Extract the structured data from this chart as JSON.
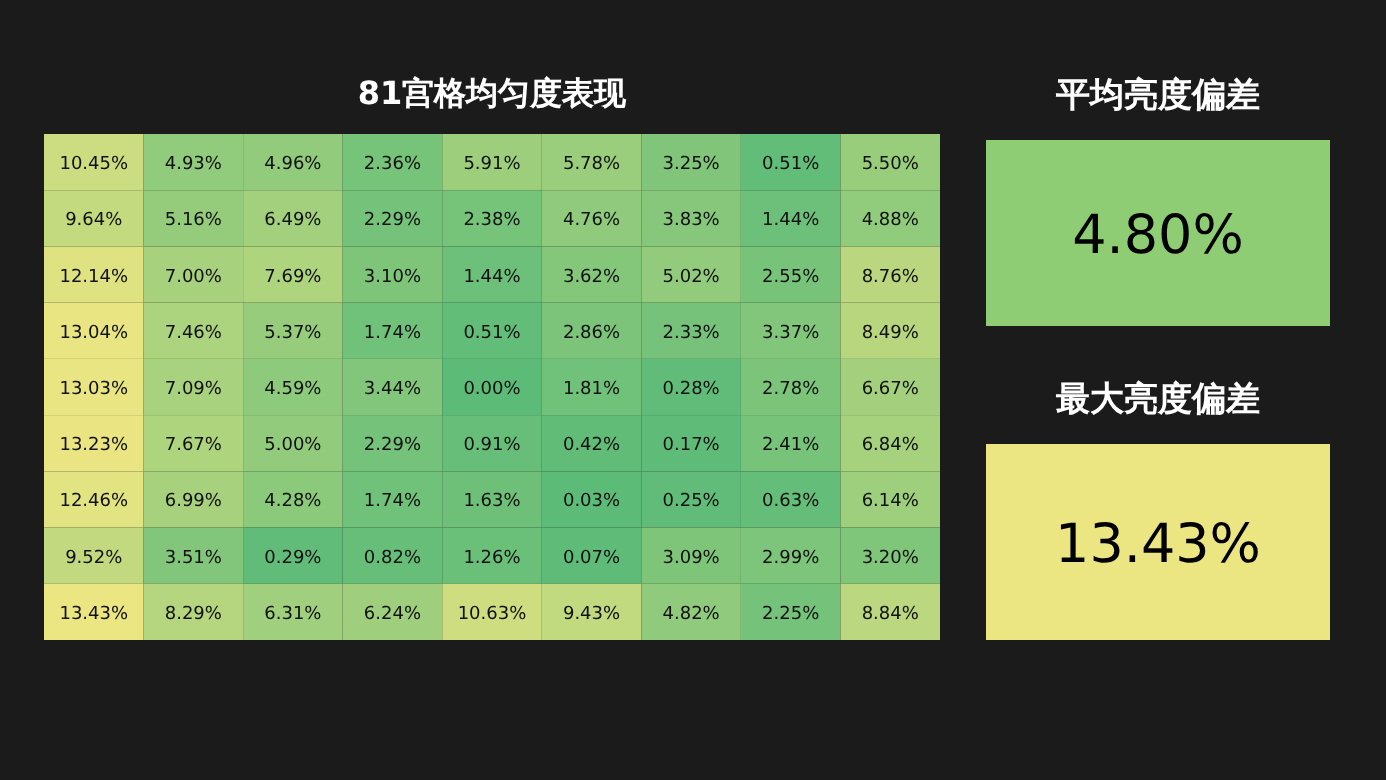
{
  "chart_data": [
    {
      "type": "heatmap",
      "title": "81宫格均匀度表现",
      "categories": [
        null,
        null,
        null,
        null,
        null,
        null,
        null,
        null,
        null
      ],
      "y_categories": [
        null,
        null,
        null,
        null,
        null,
        null,
        null,
        null,
        null
      ],
      "colors": [
        "#5dbb78",
        "#ece682"
      ],
      "cells": [
        [
          10.45,
          4.93,
          4.96,
          2.36,
          5.91,
          5.78,
          3.25,
          0.51,
          5.5
        ],
        [
          9.64,
          5.16,
          6.49,
          2.29,
          2.38,
          4.76,
          3.83,
          1.44,
          4.88
        ],
        [
          12.14,
          7.0,
          7.69,
          3.1,
          1.44,
          3.62,
          5.02,
          2.55,
          8.76
        ],
        [
          13.04,
          7.46,
          5.37,
          1.74,
          0.51,
          2.86,
          2.33,
          3.37,
          8.49
        ],
        [
          13.03,
          7.09,
          4.59,
          3.44,
          0.0,
          1.81,
          0.28,
          2.78,
          6.67
        ],
        [
          13.23,
          7.67,
          5.0,
          2.29,
          0.91,
          0.42,
          0.17,
          2.41,
          6.84
        ],
        [
          12.46,
          6.99,
          4.28,
          1.74,
          1.63,
          0.03,
          0.25,
          0.63,
          6.14
        ],
        [
          9.52,
          3.51,
          0.29,
          0.82,
          1.26,
          0.07,
          3.09,
          2.99,
          3.2
        ],
        [
          13.43,
          8.29,
          6.31,
          6.24,
          10.63,
          9.43,
          4.82,
          2.25,
          8.84
        ]
      ],
      "cell_labels": [
        [
          "10.45%",
          "4.93%",
          "4.96%",
          "2.36%",
          "5.91%",
          "5.78%",
          "3.25%",
          "0.51%",
          "5.50%"
        ],
        [
          "9.64%",
          "5.16%",
          "6.49%",
          "2.29%",
          "2.38%",
          "4.76%",
          "3.83%",
          "1.44%",
          "4.88%"
        ],
        [
          "12.14%",
          "7.00%",
          "7.69%",
          "3.10%",
          "1.44%",
          "3.62%",
          "5.02%",
          "2.55%",
          "8.76%"
        ],
        [
          "13.04%",
          "7.46%",
          "5.37%",
          "1.74%",
          "0.51%",
          "2.86%",
          "2.33%",
          "3.37%",
          "8.49%"
        ],
        [
          "13.03%",
          "7.09%",
          "4.59%",
          "3.44%",
          "0.00%",
          "1.81%",
          "0.28%",
          "2.78%",
          "6.67%"
        ],
        [
          "13.23%",
          "7.67%",
          "5.00%",
          "2.29%",
          "0.91%",
          "0.42%",
          "0.17%",
          "2.41%",
          "6.84%"
        ],
        [
          "12.46%",
          "6.99%",
          "4.28%",
          "1.74%",
          "1.63%",
          "0.03%",
          "0.25%",
          "0.63%",
          "6.14%"
        ],
        [
          "9.52%",
          "3.51%",
          "0.29%",
          "0.82%",
          "1.26%",
          "0.07%",
          "3.09%",
          "2.99%",
          "3.20%"
        ],
        [
          "13.43%",
          "8.29%",
          "6.31%",
          "6.24%",
          "10.63%",
          "9.43%",
          "4.82%",
          "2.25%",
          "8.84%"
        ]
      ]
    },
    {
      "type": "other",
      "title": "平均亮度偏差",
      "annotations": [
        "4.80%"
      ],
      "color": "#8fcd74"
    },
    {
      "type": "other",
      "title": "最大亮度偏差",
      "annotations": [
        "13.43%"
      ],
      "color": "#ece682"
    }
  ]
}
